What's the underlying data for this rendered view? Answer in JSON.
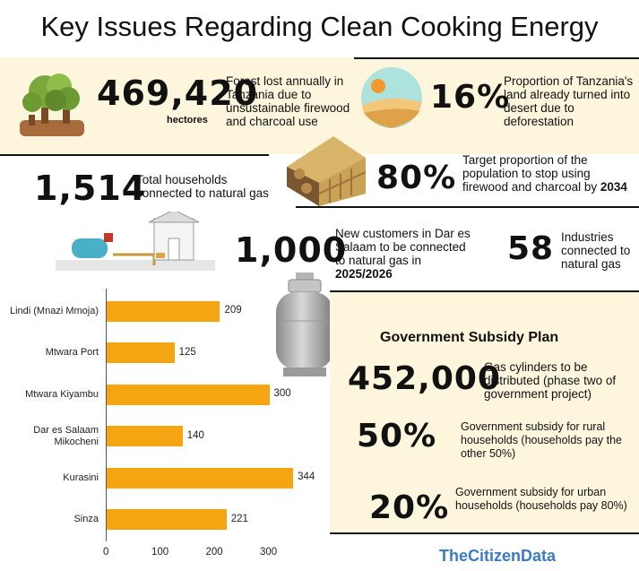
{
  "title": "Key Issues Regarding Clean Cooking Energy",
  "stats": {
    "forest": {
      "value": "469,420",
      "unit": "hectores",
      "desc": "Forest lost annually in Tanzania due to unsustainable firewood and charcoal use"
    },
    "desert": {
      "value": "16%",
      "desc": "Proportion of Tanzania's land already turned into desert due to deforestation"
    },
    "target": {
      "value": "80%",
      "desc_prefix": "Target proportion of the population to stop using firewood and charcoal by ",
      "desc_year": "2034"
    },
    "households": {
      "value": "1,514",
      "desc": "Total households connected to natural gas"
    },
    "customers": {
      "value": "1,000",
      "desc_prefix": "New customers in Dar es Salaam to be connected to natural gas in ",
      "desc_year": "2025/2026"
    },
    "industries": {
      "value": "58",
      "desc": "Industries connected to natural gas"
    }
  },
  "subsidy": {
    "heading": "Government Subsidy Plan",
    "cylinders": {
      "value": "452,000",
      "desc": "Gas cylinders to be distributed (phase two of government project)"
    },
    "rural": {
      "value": "50%",
      "desc": "Government subsidy for rural households (households pay the other 50%)"
    },
    "urban": {
      "value": "20%",
      "desc": "Government subsidy for urban households (households pay 80%)"
    }
  },
  "chart_data": {
    "type": "bar",
    "orientation": "horizontal",
    "categories": [
      "Lindi (Mnazi Mmoja)",
      "Mtwara Port",
      "Mtwara Kiyambu",
      "Dar es Salaam Mikocheni",
      "Kurasini",
      "Sinza"
    ],
    "values": [
      209,
      125,
      300,
      140,
      344,
      221
    ],
    "xticks": [
      0,
      100,
      200,
      300
    ],
    "xlim": [
      0,
      350
    ],
    "bar_color": "#f5a412"
  },
  "brand": "TheCitizenData",
  "colors": {
    "band": "#fdf6dd",
    "bar": "#f5a412",
    "brand": "#3b7bc4"
  }
}
